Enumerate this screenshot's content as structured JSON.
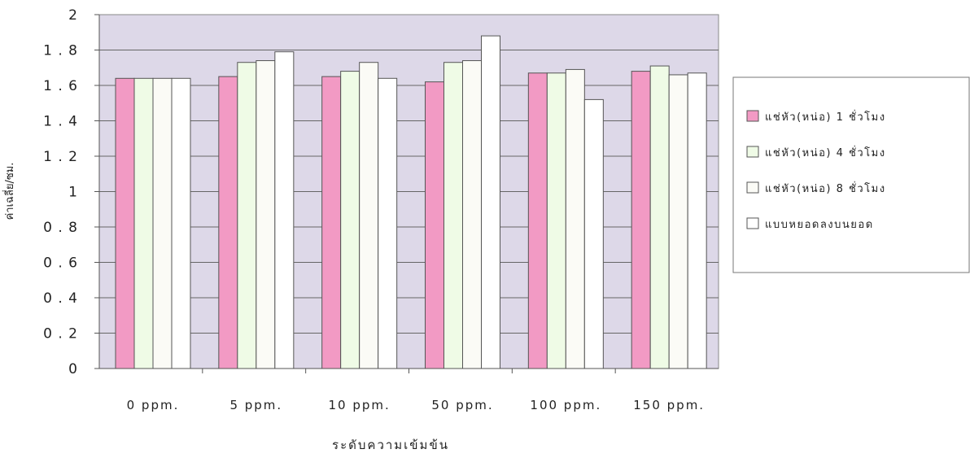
{
  "chart_data": {
    "type": "bar",
    "title": "",
    "xlabel": "ระดับความเข้มข้น",
    "ylabel": "ค่าเฉลี่ย/ซม.",
    "ylim": [
      0,
      2
    ],
    "yticks": [
      "0",
      "0 . 2",
      "0 . 4",
      "0 . 6",
      "0 . 8",
      "1",
      "1 . 2",
      "1 . 4",
      "1 . 6",
      "1 . 8",
      "2"
    ],
    "categories": [
      "0 ppm.",
      "5 ppm.",
      "10 ppm.",
      "50 ppm.",
      "100 ppm.",
      "150 ppm."
    ],
    "series": [
      {
        "name": "แช่หัว(หน่อ) 1 ชั่วโมง",
        "color": "#f29ac4",
        "values": [
          1.64,
          1.65,
          1.65,
          1.62,
          1.67,
          1.68
        ]
      },
      {
        "name": "แช่หัว(หน่อ) 4 ชั่วโมง",
        "color": "#effbe6",
        "values": [
          1.64,
          1.73,
          1.68,
          1.73,
          1.67,
          1.71
        ]
      },
      {
        "name": "แช่หัว(หน่อ) 8 ชั่วโมง",
        "color": "#fbfbf6",
        "values": [
          1.64,
          1.74,
          1.73,
          1.74,
          1.69,
          1.66
        ]
      },
      {
        "name": "แบบหยอดลงบนยอด",
        "color": "#ffffff",
        "values": [
          1.64,
          1.79,
          1.64,
          1.88,
          1.52,
          1.67
        ]
      }
    ],
    "plot_background": "#ddd8e8",
    "grid": true,
    "legend_position": "right"
  }
}
